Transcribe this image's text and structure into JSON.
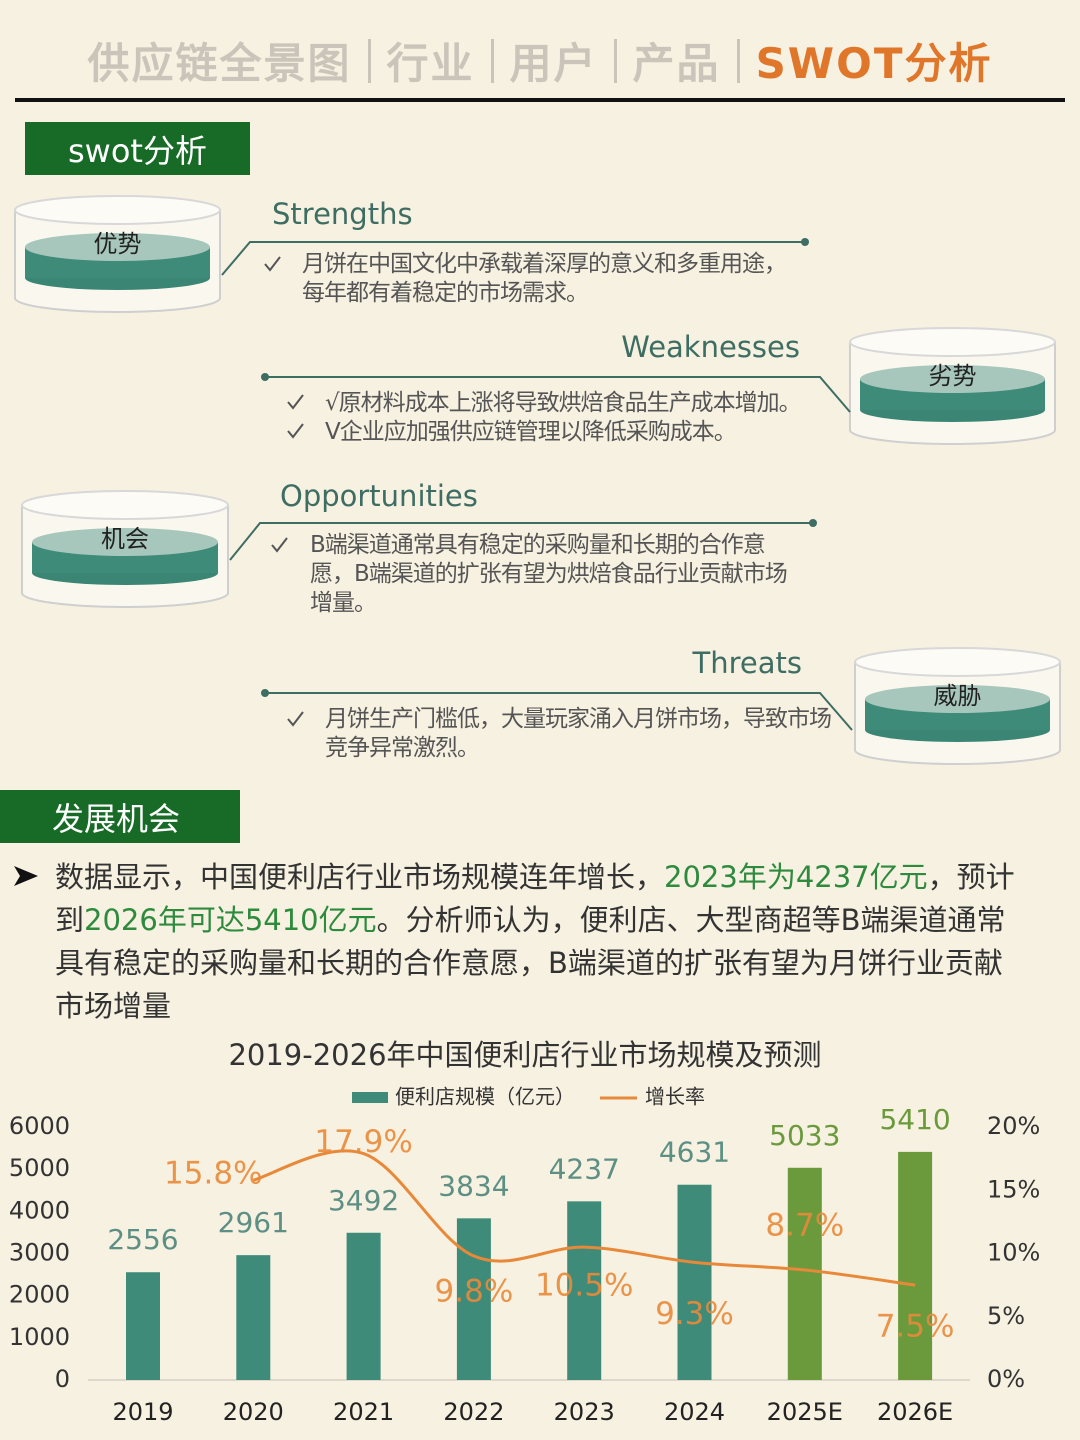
{
  "nav": {
    "items": [
      "供应链全景图",
      "行业",
      "用户",
      "产品",
      "SWOT分析"
    ]
  },
  "swot": {
    "title": "swot分析",
    "items": [
      {
        "badge": "优势",
        "heading": "Strengths",
        "points": [
          "月饼在中国文化中承载着深厚的意义和多重用途，每年都有着稳定的市场需求。"
        ]
      },
      {
        "badge": "劣势",
        "heading": "Weaknesses",
        "points": [
          "√原材料成本上涨将导致烘焙食品生产成本增加。",
          "V企业应加强供应链管理以降低采购成本。"
        ]
      },
      {
        "badge": "机会",
        "heading": "Opportunities",
        "points": [
          "B端渠道通常具有稳定的采购量和长期的合作意愿，B端渠道的扩张有望为烘焙食品行业贡献市场增量。"
        ]
      },
      {
        "badge": "威胁",
        "heading": "Threats",
        "points": [
          "月饼生产门槛低，大量玩家涌入月饼市场，导致市场竞争异常激烈。"
        ]
      }
    ]
  },
  "development": {
    "title": "发展机会",
    "paragraph": [
      {
        "text": "数据显示，中国便利店行业市场规模连年增长，"
      },
      {
        "text": "2023年为4237亿元",
        "highlight": true
      },
      {
        "text": "，预计到"
      },
      {
        "text": "2026年可达5410亿元",
        "highlight": true
      },
      {
        "text": "。分析师认为，便利店、大型商超等B端渠道通常具有稳定的采购量和长期的合作意愿，B端渠道的扩张有望为月饼行业贡献市场增量"
      }
    ]
  },
  "chart_data": {
    "type": "bar-line",
    "title": "2019-2026年中国便利店行业市场规模及预测",
    "categories": [
      "2019",
      "2020",
      "2021",
      "2022",
      "2023",
      "2024",
      "2025E",
      "2026E"
    ],
    "series": [
      {
        "name": "便利店规模（亿元）",
        "type": "bar",
        "color": "#3f8b79",
        "colors": [
          "#3f8b79",
          "#3f8b79",
          "#3f8b79",
          "#3f8b79",
          "#3f8b79",
          "#3f8b79",
          "#6a9a3c",
          "#6a9a3c"
        ],
        "values": [
          2556,
          2961,
          3492,
          3834,
          4237,
          4631,
          5033,
          5410
        ]
      },
      {
        "name": "增长率",
        "type": "line",
        "axis": "y2",
        "color": "#e8893a",
        "values": [
          null,
          15.8,
          17.9,
          9.8,
          10.5,
          9.3,
          8.7,
          7.5
        ],
        "value_labels": [
          null,
          "15.8%",
          "17.9%",
          "9.8%",
          "10.5%",
          "9.3%",
          "8.7%",
          "7.5%"
        ]
      }
    ],
    "ylim": [
      0,
      6000
    ],
    "yticks": [
      0,
      1000,
      2000,
      3000,
      4000,
      5000,
      6000
    ],
    "y2lim": [
      0,
      20
    ],
    "y2ticks": [
      {
        "value": 0,
        "label": "0%"
      },
      {
        "value": 5,
        "label": "5%"
      },
      {
        "value": 10,
        "label": "10%"
      },
      {
        "value": 15,
        "label": "15%"
      },
      {
        "value": 20,
        "label": "20%"
      }
    ],
    "legend": "top"
  }
}
